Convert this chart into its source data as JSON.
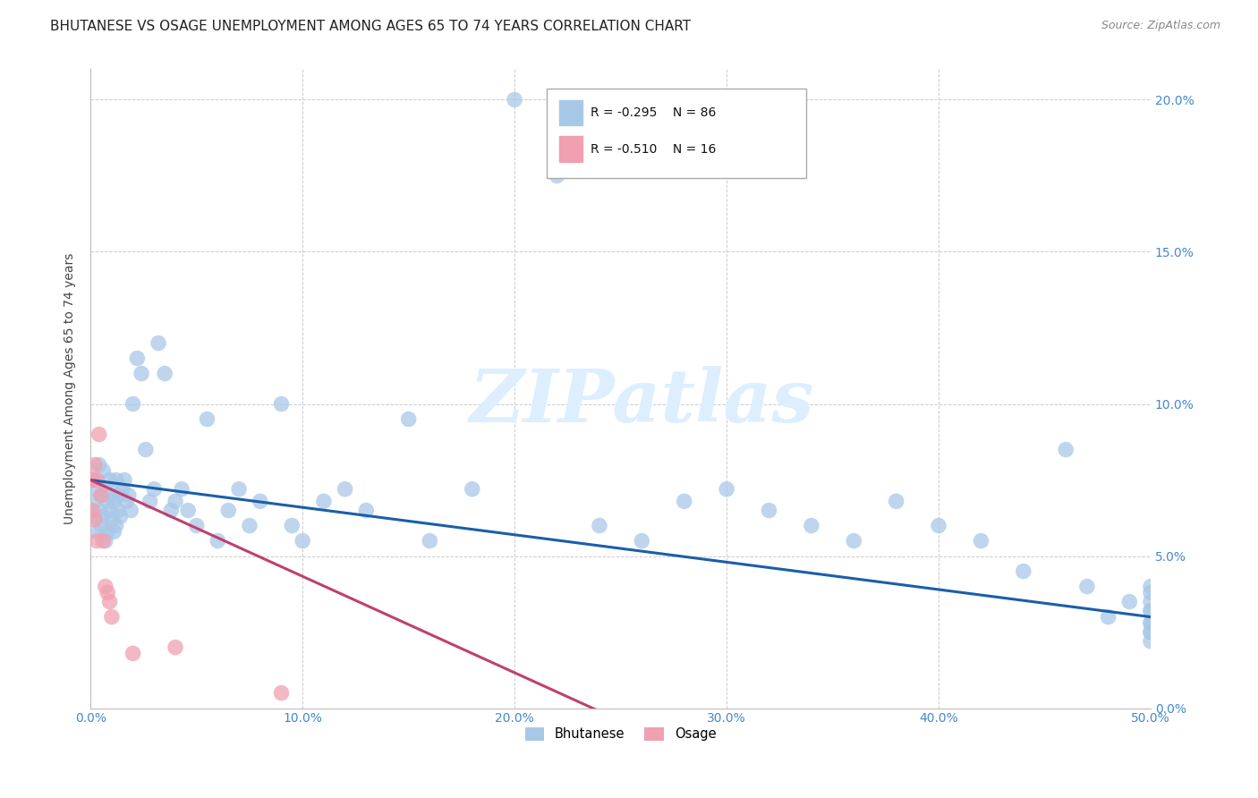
{
  "title": "BHUTANESE VS OSAGE UNEMPLOYMENT AMONG AGES 65 TO 74 YEARS CORRELATION CHART",
  "source": "Source: ZipAtlas.com",
  "ylabel_label": "Unemployment Among Ages 65 to 74 years",
  "bhutanese_x": [
    0.001,
    0.002,
    0.002,
    0.003,
    0.003,
    0.004,
    0.004,
    0.005,
    0.005,
    0.006,
    0.006,
    0.007,
    0.007,
    0.008,
    0.008,
    0.009,
    0.009,
    0.01,
    0.01,
    0.011,
    0.011,
    0.012,
    0.012,
    0.013,
    0.013,
    0.014,
    0.015,
    0.016,
    0.017,
    0.018,
    0.019,
    0.02,
    0.022,
    0.024,
    0.026,
    0.028,
    0.03,
    0.032,
    0.035,
    0.038,
    0.04,
    0.043,
    0.046,
    0.05,
    0.055,
    0.06,
    0.065,
    0.07,
    0.075,
    0.08,
    0.09,
    0.095,
    0.1,
    0.11,
    0.12,
    0.13,
    0.15,
    0.16,
    0.18,
    0.2,
    0.22,
    0.24,
    0.26,
    0.28,
    0.3,
    0.32,
    0.34,
    0.36,
    0.38,
    0.4,
    0.42,
    0.44,
    0.46,
    0.47,
    0.48,
    0.49,
    0.5,
    0.5,
    0.5,
    0.5,
    0.5,
    0.5,
    0.5,
    0.5,
    0.5,
    0.5
  ],
  "bhutanese_y": [
    0.075,
    0.068,
    0.063,
    0.072,
    0.058,
    0.08,
    0.065,
    0.07,
    0.06,
    0.078,
    0.063,
    0.072,
    0.055,
    0.068,
    0.058,
    0.065,
    0.075,
    0.07,
    0.062,
    0.068,
    0.058,
    0.075,
    0.06,
    0.07,
    0.065,
    0.063,
    0.072,
    0.075,
    0.068,
    0.07,
    0.065,
    0.1,
    0.115,
    0.11,
    0.085,
    0.068,
    0.072,
    0.12,
    0.11,
    0.065,
    0.068,
    0.072,
    0.065,
    0.06,
    0.095,
    0.055,
    0.065,
    0.072,
    0.06,
    0.068,
    0.1,
    0.06,
    0.055,
    0.068,
    0.072,
    0.065,
    0.095,
    0.055,
    0.072,
    0.2,
    0.175,
    0.06,
    0.055,
    0.068,
    0.072,
    0.065,
    0.06,
    0.055,
    0.068,
    0.06,
    0.055,
    0.045,
    0.085,
    0.04,
    0.03,
    0.035,
    0.038,
    0.032,
    0.028,
    0.025,
    0.04,
    0.035,
    0.028,
    0.022,
    0.032,
    0.025
  ],
  "osage_x": [
    0.001,
    0.001,
    0.002,
    0.002,
    0.003,
    0.003,
    0.004,
    0.005,
    0.006,
    0.007,
    0.008,
    0.009,
    0.01,
    0.02,
    0.04,
    0.09
  ],
  "osage_y": [
    0.075,
    0.065,
    0.08,
    0.062,
    0.075,
    0.055,
    0.09,
    0.07,
    0.055,
    0.04,
    0.038,
    0.035,
    0.03,
    0.018,
    0.02,
    0.005
  ],
  "xlim": [
    0.0,
    0.5
  ],
  "ylim": [
    0.0,
    0.21
  ],
  "blue_line_start_y": 0.075,
  "blue_line_end_y": 0.03,
  "pink_line_start_y": 0.075,
  "pink_line_end_x": 0.3,
  "blue_line_color": "#1a5fa8",
  "pink_line_color": "#c04070",
  "dot_blue": "#a8c8e8",
  "dot_pink": "#f0a0b0",
  "watermark_text": "ZIPatlas",
  "watermark_color": "#ddeeff",
  "title_fontsize": 11,
  "axis_label_fontsize": 10,
  "tick_fontsize": 10,
  "tick_color": "#4488cc"
}
